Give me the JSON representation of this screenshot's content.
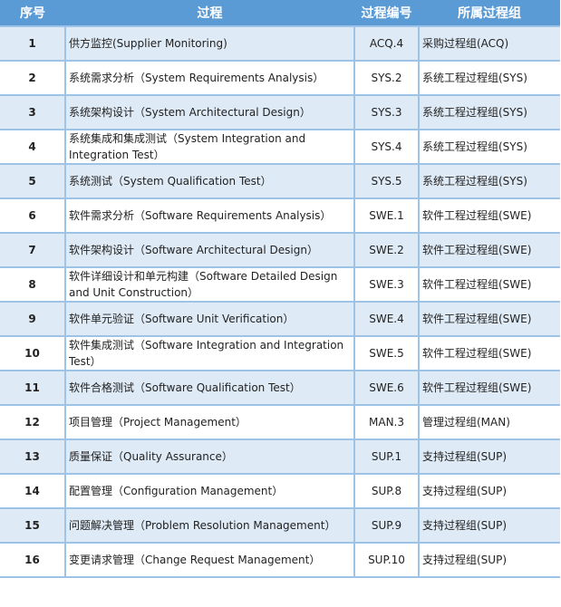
{
  "headers": [
    "序号",
    "过程",
    "过程编号",
    "所属过程组"
  ],
  "rows": [
    {
      "no": "1",
      "process": "供方监控(Supplier Monitoring)",
      "code": "ACQ.4",
      "group": "采购过程组(ACQ)"
    },
    {
      "no": "2",
      "process": "系统需求分析（System Requirements Analysis）",
      "code": "SYS.2",
      "group": "系统工程过程组(SYS)"
    },
    {
      "no": "3",
      "process": "系统架构设计（System Architectural Design）",
      "code": "SYS.3",
      "group": "系统工程过程组(SYS)"
    },
    {
      "no": "4",
      "process": "系统集成和集成测试（System Integration and Integration Test）",
      "code": "SYS.4",
      "group": "系统工程过程组(SYS)"
    },
    {
      "no": "5",
      "process": "系统测试（System Qualification Test）",
      "code": "SYS.5",
      "group": "系统工程过程组(SYS)"
    },
    {
      "no": "6",
      "process": "软件需求分析（Software Requirements Analysis）",
      "code": "SWE.1",
      "group": "软件工程过程组(SWE)"
    },
    {
      "no": "7",
      "process": "软件架构设计（Software Architectural Design）",
      "code": "SWE.2",
      "group": "软件工程过程组(SWE)"
    },
    {
      "no": "8",
      "process": "软件详细设计和单元构建（Software Detailed Design and Unit Construction）",
      "code": "SWE.3",
      "group": "软件工程过程组(SWE)"
    },
    {
      "no": "9",
      "process": "软件单元验证（Software Unit Verification）",
      "code": "SWE.4",
      "group": "软件工程过程组(SWE)"
    },
    {
      "no": "10",
      "process": "软件集成测试（Software Integration and Integration Test）",
      "code": "SWE.5",
      "group": "软件工程过程组(SWE)"
    },
    {
      "no": "11",
      "process": "软件合格测试（Software Qualification Test）",
      "code": "SWE.6",
      "group": "软件工程过程组(SWE)"
    },
    {
      "no": "12",
      "process": "项目管理（Project Management）",
      "code": "MAN.3",
      "group": "管理过程组(MAN)"
    },
    {
      "no": "13",
      "process": "质量保证（Quality Assurance）",
      "code": "SUP.1",
      "group": "支持过程组(SUP)"
    },
    {
      "no": "14",
      "process": "配置管理（Configuration Management）",
      "code": "SUP.8",
      "group": "支持过程组(SUP)"
    },
    {
      "no": "15",
      "process": "问题解决管理（Problem Resolution Management）",
      "code": "SUP.9",
      "group": "支持过程组(SUP)"
    },
    {
      "no": "16",
      "process": "变更请求管理（Change Request Management）",
      "code": "SUP.10",
      "group": "支持过程组(SUP)"
    }
  ],
  "colors": {
    "header_bg": "#5b9bd5",
    "odd_row_bg": "#deeaf6",
    "border": "#9dc3e6"
  }
}
